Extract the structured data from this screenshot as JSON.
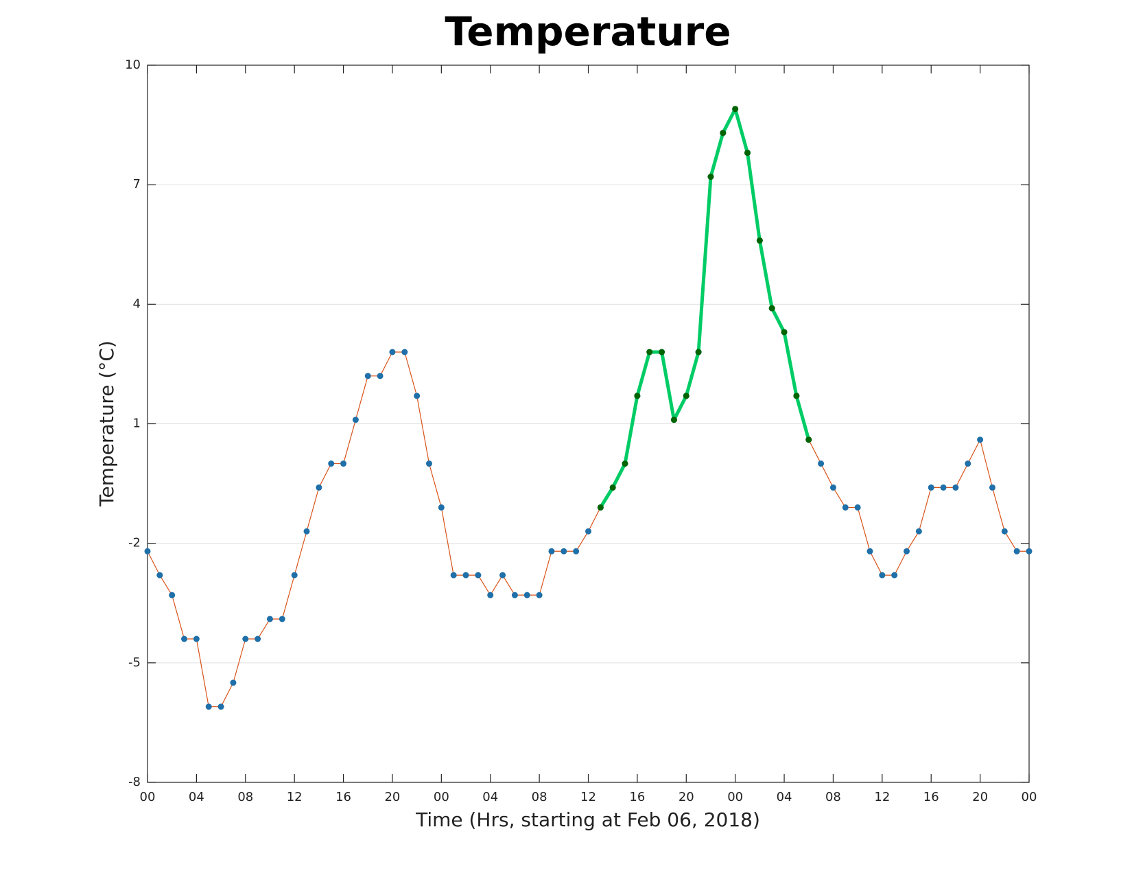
{
  "chart_data": {
    "type": "line",
    "title": "Temperature",
    "xlabel": "Time (Hrs, starting at Feb 06, 2018)",
    "ylabel": "Temperature (°C)",
    "x": [
      0,
      1,
      2,
      3,
      4,
      5,
      6,
      7,
      8,
      9,
      10,
      11,
      12,
      13,
      14,
      15,
      16,
      17,
      18,
      19,
      20,
      21,
      22,
      23,
      24,
      25,
      26,
      27,
      28,
      29,
      30,
      31,
      32,
      33,
      34,
      35,
      36,
      37,
      38,
      39,
      40,
      41,
      42,
      43,
      44,
      45,
      46,
      47,
      48,
      49,
      50,
      51,
      52,
      53,
      54,
      55,
      56,
      57,
      58,
      59,
      60,
      61,
      62,
      63,
      64,
      65,
      66,
      67,
      68,
      69,
      70,
      71,
      72
    ],
    "series": [
      {
        "color": "#d95319",
        "marker_color": "#1f6fa8",
        "line_width": 1.2,
        "values": [
          -2.2,
          -2.8,
          -3.3,
          -4.4,
          -4.4,
          -6.1,
          -6.1,
          -5.5,
          -4.4,
          -4.4,
          -3.9,
          -3.9,
          -2.8,
          -1.7,
          -0.6,
          0,
          0,
          1.1,
          2.2,
          2.2,
          2.8,
          2.8,
          1.7,
          0,
          -1.1,
          -2.8,
          -2.8,
          -2.8,
          -3.3,
          -2.8,
          -3.3,
          -3.3,
          -3.3,
          -2.2,
          -2.2,
          -2.2,
          -1.7,
          -1.1,
          -0.6,
          0,
          1.7,
          2.8,
          2.8,
          1.1,
          1.7,
          2.8,
          7.2,
          8.3,
          8.9,
          7.8,
          5.6,
          3.9,
          3.3,
          1.7,
          0.6,
          0,
          -0.6,
          -1.1,
          -1.1,
          -2.2,
          -2.8,
          -2.8,
          -2.2,
          -1.7,
          -0.6,
          -0.6,
          -0.6,
          0,
          0.6,
          -0.6,
          -1.7,
          -2.2,
          -2.2
        ]
      },
      {
        "color": "#00cc66",
        "marker_color": "#006400",
        "line_width": 5,
        "values": [
          null,
          null,
          null,
          null,
          null,
          null,
          null,
          null,
          null,
          null,
          null,
          null,
          null,
          null,
          null,
          null,
          null,
          null,
          null,
          null,
          null,
          null,
          null,
          null,
          null,
          null,
          null,
          null,
          null,
          null,
          null,
          null,
          null,
          null,
          null,
          null,
          null,
          -1.1,
          -0.6,
          0,
          1.7,
          2.8,
          2.8,
          1.1,
          1.7,
          2.8,
          7.2,
          8.3,
          8.9,
          7.8,
          5.6,
          3.9,
          3.3,
          1.7,
          0.6,
          null,
          null,
          null,
          null,
          null,
          null,
          null,
          null,
          null,
          null,
          null,
          null,
          null,
          null,
          null,
          null,
          null,
          null
        ]
      }
    ],
    "xlim": [
      0,
      72
    ],
    "xticks": [
      {
        "value": 0,
        "label": "00"
      },
      {
        "value": 4,
        "label": "04"
      },
      {
        "value": 8,
        "label": "08"
      },
      {
        "value": 12,
        "label": "12"
      },
      {
        "value": 16,
        "label": "16"
      },
      {
        "value": 20,
        "label": "20"
      },
      {
        "value": 24,
        "label": "00"
      },
      {
        "value": 28,
        "label": "04"
      },
      {
        "value": 32,
        "label": "08"
      },
      {
        "value": 36,
        "label": "12"
      },
      {
        "value": 40,
        "label": "16"
      },
      {
        "value": 44,
        "label": "20"
      },
      {
        "value": 48,
        "label": "00"
      },
      {
        "value": 52,
        "label": "04"
      },
      {
        "value": 56,
        "label": "08"
      },
      {
        "value": 60,
        "label": "12"
      },
      {
        "value": 64,
        "label": "16"
      },
      {
        "value": 68,
        "label": "20"
      },
      {
        "value": 72,
        "label": "00"
      }
    ],
    "ylim": [
      -8,
      10
    ],
    "yticks": [
      -8,
      -5,
      -2,
      1,
      4,
      7,
      10
    ],
    "grid": true
  }
}
